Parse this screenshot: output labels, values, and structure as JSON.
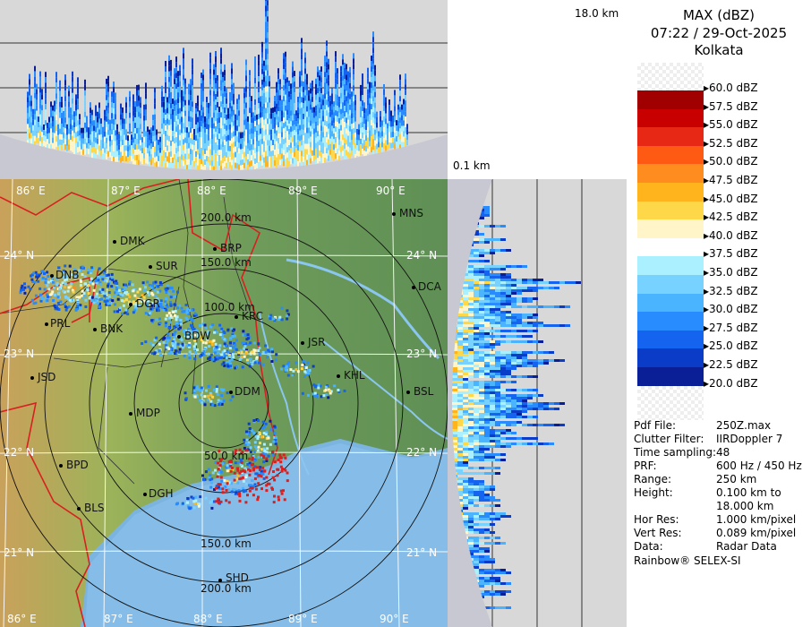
{
  "header": {
    "product": "MAX (dBZ)",
    "datetime": "07:22 / 29-Oct-2025",
    "station": "Kolkata"
  },
  "height_labels": {
    "top": "18.0 km",
    "bottom": "0.1 km"
  },
  "legend": {
    "entries": [
      {
        "label": "60.0 dBZ",
        "color": ""
      },
      {
        "label": "57.5 dBZ",
        "color": "#a00000"
      },
      {
        "label": "55.0 dBZ",
        "color": "#c80000"
      },
      {
        "label": "52.5 dBZ",
        "color": "#e62814"
      },
      {
        "label": "50.0 dBZ",
        "color": "#ff5a14"
      },
      {
        "label": "47.5 dBZ",
        "color": "#ff8c1e"
      },
      {
        "label": "45.0 dBZ",
        "color": "#ffb41e"
      },
      {
        "label": "42.5 dBZ",
        "color": "#ffd84a"
      },
      {
        "label": "40.0 dBZ",
        "color": "#fff5c8"
      },
      {
        "label": "37.5 dBZ",
        "color": "#ffffff"
      },
      {
        "label": "35.0 dBZ",
        "color": "#aaf0ff"
      },
      {
        "label": "32.5 dBZ",
        "color": "#78d2ff"
      },
      {
        "label": "30.0 dBZ",
        "color": "#4ab4ff"
      },
      {
        "label": "27.5 dBZ",
        "color": "#288cff"
      },
      {
        "label": "25.0 dBZ",
        "color": "#1464f0"
      },
      {
        "label": "22.5 dBZ",
        "color": "#0a3cc8"
      },
      {
        "label": "20.0 dBZ",
        "color": "#0a1e96"
      }
    ]
  },
  "info": [
    {
      "key": "Pdf File:",
      "value": "250Z.max"
    },
    {
      "key": "Clutter Filter:",
      "value": "IIRDoppler 7"
    },
    {
      "key": "Time sampling:",
      "value": "48"
    },
    {
      "key": "PRF:",
      "value": "600 Hz / 450 Hz"
    },
    {
      "key": "Range:",
      "value": "250 km"
    },
    {
      "key": "Height:",
      "value": "0.100 km to"
    },
    {
      "key": "",
      "value": "18.000 km"
    },
    {
      "key": "Hor Res:",
      "value": "1.000 km/pixel"
    },
    {
      "key": "Vert Res:",
      "value": "0.089 km/pixel"
    },
    {
      "key": "Data:",
      "value": "Radar Data"
    }
  ],
  "footer": "Rainbow® SELEX-SI",
  "map": {
    "longitudes": [
      "86° E",
      "87° E",
      "88° E",
      "89° E",
      "90° E"
    ],
    "latitudes": [
      "24° N",
      "23° N",
      "22° N",
      "21° N"
    ],
    "rings": [
      "50.0 km",
      "100.0 km",
      "150.0 km",
      "200.0 km"
    ],
    "cities": [
      "MNS",
      "DMK",
      "BRP",
      "SUR",
      "DNB",
      "DCA",
      "DGR",
      "KRC",
      "PRL",
      "BNK",
      "BDW",
      "JSR",
      "JSD",
      "KHL",
      "DDM",
      "BSL",
      "MDP",
      "BPD",
      "DGH",
      "BLS",
      "SHD"
    ]
  }
}
